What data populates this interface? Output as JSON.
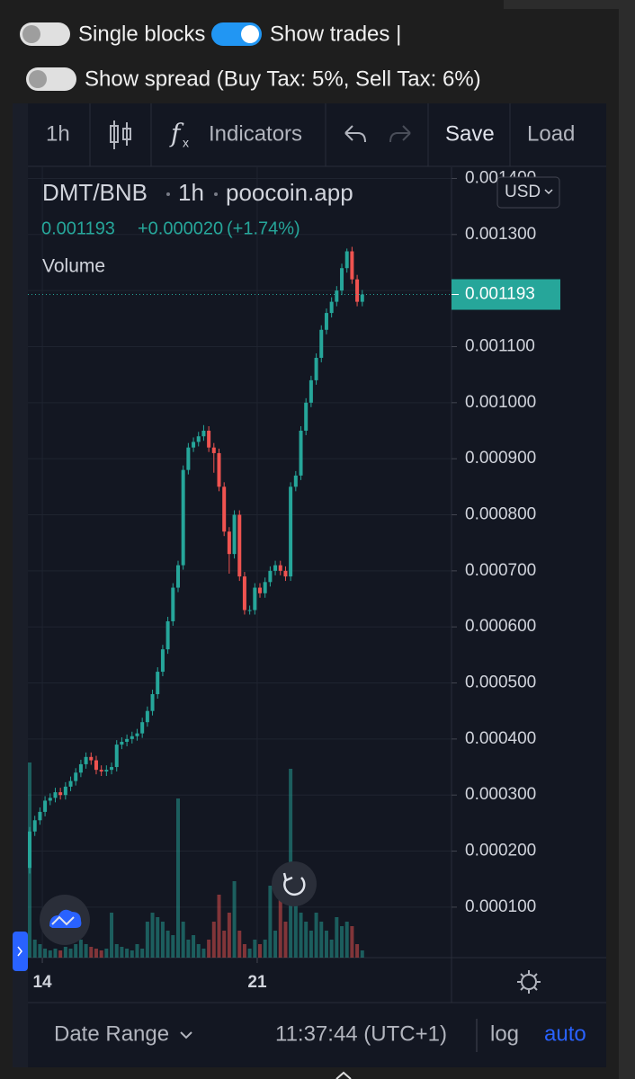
{
  "toggles": [
    {
      "label": "Single blocks",
      "on": false
    },
    {
      "label": "Show trades |",
      "on": true
    },
    {
      "label": "Show spread (Buy Tax: 5%, Sell Tax: 6%)",
      "on": false
    }
  ],
  "toolbar": {
    "interval": "1h",
    "indicators": "Indicators",
    "save": "Save",
    "load": "Load"
  },
  "legend": {
    "symbol": "DMT/BNB",
    "interval": "1h",
    "source": "poocoin.app",
    "change": "+0.000020",
    "change_percent": "(+1.74%)",
    "volume": "Volume"
  },
  "currency": "USD",
  "footer": {
    "date_range": "Date Range",
    "time": "11:37:44 (UTC+1)",
    "log": "log",
    "auto": "auto"
  },
  "chart_data": {
    "type": "candlestick",
    "x": [
      13.589,
      13.756,
      13.923,
      14.089,
      14.256,
      14.423,
      14.589,
      14.756,
      14.923,
      15.089,
      15.256,
      15.423,
      15.589,
      15.756,
      15.923,
      16.089,
      16.256,
      16.423,
      16.589,
      16.756,
      16.923,
      17.089,
      17.256,
      17.423,
      17.589,
      17.756,
      17.923,
      18.089,
      18.256,
      18.423,
      18.589,
      18.756,
      18.923,
      19.089,
      19.256,
      19.423,
      19.589,
      19.756,
      19.923,
      20.089,
      20.256,
      20.423,
      20.589,
      20.756,
      20.923,
      21.089,
      21.256,
      21.423,
      21.589,
      21.756,
      21.923,
      22.089,
      22.256,
      22.423,
      22.589,
      22.756,
      22.923,
      23.089,
      23.256,
      23.423,
      23.589,
      23.756,
      23.923,
      24.089,
      24.256,
      24.423
    ],
    "open": [
      0.00017,
      0.000235,
      0.000255,
      0.00027,
      0.00029,
      0.000295,
      0.000305,
      0.0003,
      0.000315,
      0.000325,
      0.00034,
      0.000355,
      0.000368,
      0.000362,
      0.000345,
      0.000342,
      0.000345,
      0.00035,
      0.00039,
      0.000395,
      0.0004,
      0.000405,
      0.00041,
      0.00043,
      0.00045,
      0.00048,
      0.00052,
      0.00056,
      0.00061,
      0.00067,
      0.00071,
      0.00088,
      0.00092,
      0.00093,
      0.00094,
      0.00095,
      0.00092,
      0.00091,
      0.00085,
      0.00077,
      0.00073,
      0.0008,
      0.00069,
      0.00063,
      0.00063,
      0.00067,
      0.00066,
      0.00068,
      0.0007,
      0.00071,
      0.0007,
      0.00069,
      0.00085,
      0.00087,
      0.00095,
      0.001,
      0.00104,
      0.00108,
      0.00113,
      0.00116,
      0.00118,
      0.0012,
      0.00124,
      0.00127,
      0.00122,
      0.00118
    ],
    "high": [
      0.000243,
      0.000263,
      0.000278,
      0.000298,
      0.000303,
      0.000313,
      0.000313,
      0.000323,
      0.000333,
      0.000348,
      0.000363,
      0.000376,
      0.000376,
      0.00037,
      0.000353,
      0.000353,
      0.000358,
      0.000398,
      0.000403,
      0.000408,
      0.000413,
      0.000418,
      0.000438,
      0.000458,
      0.000488,
      0.000528,
      0.000568,
      0.000618,
      0.000678,
      0.000718,
      0.000888,
      0.000928,
      0.000938,
      0.000948,
      0.00096,
      0.000958,
      0.000928,
      0.000918,
      0.000858,
      0.000778,
      0.000808,
      0.000808,
      0.000698,
      0.000638,
      0.000678,
      0.000678,
      0.000688,
      0.000708,
      0.000718,
      0.000718,
      0.000708,
      0.000858,
      0.000878,
      0.000958,
      0.001008,
      0.001048,
      0.001088,
      0.001138,
      0.001168,
      0.001188,
      0.001208,
      0.001248,
      0.001275,
      0.001278,
      0.001228,
      0.001201
    ],
    "low": [
      0.00016,
      0.000227,
      0.000247,
      0.000262,
      0.000282,
      0.000287,
      0.000292,
      0.000292,
      0.000307,
      0.000317,
      0.000332,
      0.000347,
      0.000354,
      0.000337,
      0.000334,
      0.000334,
      0.000337,
      0.000342,
      0.000382,
      0.000387,
      0.000392,
      0.000397,
      0.000402,
      0.000422,
      0.000442,
      0.000472,
      0.000512,
      0.000552,
      0.000602,
      0.000662,
      0.000702,
      0.000872,
      0.000912,
      0.000922,
      0.000932,
      0.000912,
      0.000875,
      0.000842,
      0.000762,
      0.000695,
      0.000722,
      0.000682,
      0.000622,
      0.000622,
      0.000622,
      0.000652,
      0.000652,
      0.000672,
      0.000692,
      0.000692,
      0.000682,
      0.000682,
      0.000842,
      0.000862,
      0.000942,
      0.000992,
      0.001032,
      0.001072,
      0.001122,
      0.001152,
      0.001172,
      0.001192,
      0.001232,
      0.001212,
      0.001172,
      0.001172
    ],
    "close": [
      0.000235,
      0.000255,
      0.00027,
      0.00029,
      0.000295,
      0.000305,
      0.0003,
      0.000315,
      0.000325,
      0.00034,
      0.000355,
      0.000368,
      0.000362,
      0.000345,
      0.000342,
      0.000345,
      0.00035,
      0.00039,
      0.000395,
      0.0004,
      0.000405,
      0.00041,
      0.00043,
      0.00045,
      0.00048,
      0.00052,
      0.00056,
      0.00061,
      0.00067,
      0.00071,
      0.00088,
      0.00092,
      0.00093,
      0.00094,
      0.00095,
      0.00092,
      0.00091,
      0.00085,
      0.00077,
      0.00073,
      0.0008,
      0.00069,
      0.00063,
      0.00063,
      0.00067,
      0.00066,
      0.00068,
      0.0007,
      0.00071,
      0.0007,
      0.00069,
      0.00085,
      0.00087,
      0.00095,
      0.001,
      0.00104,
      0.00108,
      0.00113,
      0.00116,
      0.00118,
      0.0012,
      0.00124,
      0.00127,
      0.00122,
      0.00118,
      0.001193
    ],
    "volume": [
      217,
      20,
      15,
      10,
      8,
      10,
      8,
      12,
      10,
      15,
      20,
      15,
      12,
      10,
      8,
      10,
      50,
      15,
      12,
      10,
      8,
      15,
      10,
      40,
      50,
      45,
      40,
      30,
      25,
      177,
      40,
      20,
      25,
      15,
      10,
      20,
      40,
      70,
      30,
      50,
      85,
      30,
      15,
      10,
      20,
      15,
      20,
      80,
      30,
      75,
      40,
      210,
      60,
      50,
      40,
      30,
      50,
      40,
      30,
      20,
      45,
      35,
      40,
      35,
      15,
      8
    ],
    "up_color": "#26a69a",
    "down_color": "#ef5350",
    "xlim": [
      13.53,
      27.33
    ],
    "xticks": [
      14,
      21
    ],
    "ylim": [
      1e-05,
      0.00142
    ],
    "yticks": [
      {
        "value": 0.0001,
        "label": "0.000100"
      },
      {
        "value": 0.0002,
        "label": "0.000200"
      },
      {
        "value": 0.0003,
        "label": "0.000300"
      },
      {
        "value": 0.0004,
        "label": "0.000400"
      },
      {
        "value": 0.0005,
        "label": "0.000500"
      },
      {
        "value": 0.0006,
        "label": "0.000600"
      },
      {
        "value": 0.0007,
        "label": "0.000700"
      },
      {
        "value": 0.0008,
        "label": "0.000800"
      },
      {
        "value": 0.0009,
        "label": "0.000900"
      },
      {
        "value": 0.001,
        "label": "0.001000"
      },
      {
        "value": 0.0011,
        "label": "0.001100"
      },
      {
        "value": 0.0012,
        "label": "0.001200"
      },
      {
        "value": 0.0013,
        "label": "0.001300"
      },
      {
        "value": 0.0014,
        "label": "0.001400"
      }
    ],
    "grid": true
  }
}
